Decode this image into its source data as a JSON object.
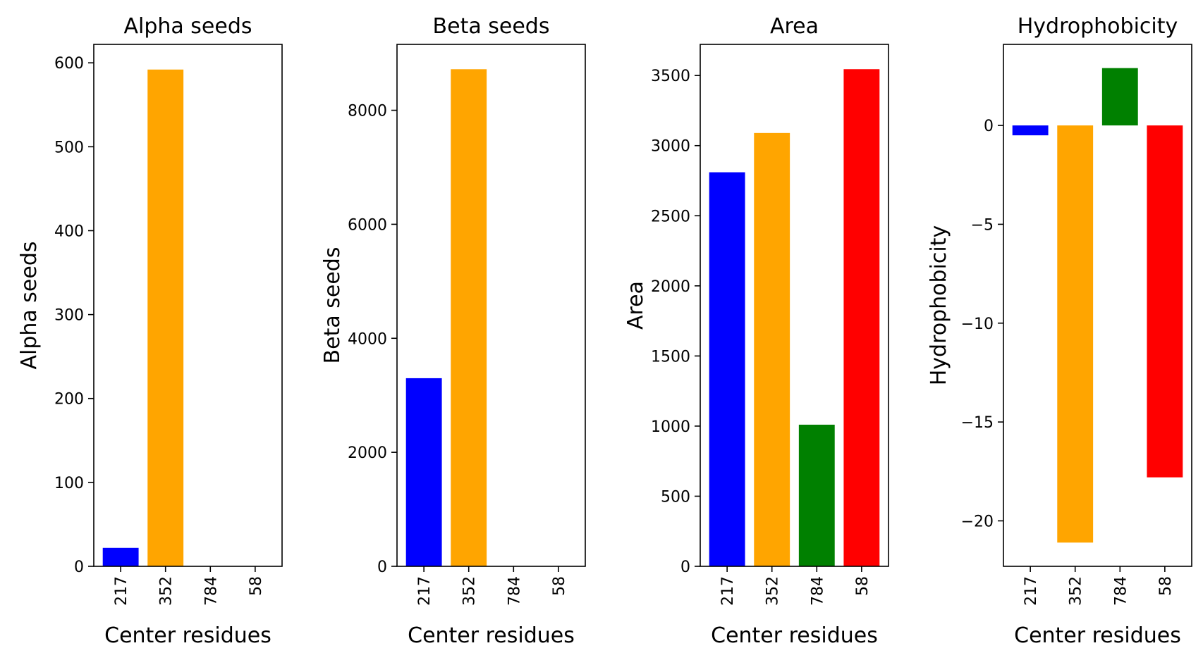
{
  "chart_data": [
    {
      "type": "bar",
      "title": "Alpha seeds",
      "xlabel": "Center residues",
      "ylabel": "Alpha seeds",
      "categories": [
        "217",
        "352",
        "784",
        "58"
      ],
      "values": [
        22,
        592,
        0,
        0
      ],
      "colors": [
        "#0000ff",
        "#ffa500",
        "#008000",
        "#ff0000"
      ],
      "ylim": [
        0,
        622
      ],
      "yticks": [
        0,
        100,
        200,
        300,
        400,
        500,
        600
      ],
      "ytick_labels": [
        "0",
        "100",
        "200",
        "300",
        "400",
        "500",
        "600"
      ]
    },
    {
      "type": "bar",
      "title": "Beta seeds",
      "xlabel": "Center residues",
      "ylabel": "Beta seeds",
      "categories": [
        "217",
        "352",
        "784",
        "58"
      ],
      "values": [
        3300,
        8720,
        0,
        0
      ],
      "colors": [
        "#0000ff",
        "#ffa500",
        "#008000",
        "#ff0000"
      ],
      "ylim": [
        0,
        9156
      ],
      "yticks": [
        0,
        2000,
        4000,
        6000,
        8000
      ],
      "ytick_labels": [
        "0",
        "2000",
        "4000",
        "6000",
        "8000"
      ]
    },
    {
      "type": "bar",
      "title": "Area",
      "xlabel": "Center residues",
      "ylabel": "Area",
      "categories": [
        "217",
        "352",
        "784",
        "58"
      ],
      "values": [
        2810,
        3090,
        1010,
        3545
      ],
      "colors": [
        "#0000ff",
        "#ffa500",
        "#008000",
        "#ff0000"
      ],
      "ylim": [
        0,
        3722
      ],
      "yticks": [
        0,
        500,
        1000,
        1500,
        2000,
        2500,
        3000,
        3500
      ],
      "ytick_labels": [
        "0",
        "500",
        "1000",
        "1500",
        "2000",
        "2500",
        "3000",
        "3500"
      ]
    },
    {
      "type": "bar",
      "title": "Hydrophobicity",
      "xlabel": "Center residues",
      "ylabel": "Hydrophobicity",
      "categories": [
        "217",
        "352",
        "784",
        "58"
      ],
      "values": [
        -0.5,
        -21.1,
        2.9,
        -17.8
      ],
      "colors": [
        "#0000ff",
        "#ffa500",
        "#008000",
        "#ff0000"
      ],
      "ylim": [
        -22.3,
        4.1
      ],
      "yticks": [
        -20,
        -15,
        -10,
        -5,
        0
      ],
      "ytick_labels": [
        "−20",
        "−15",
        "−10",
        "−5",
        "0"
      ]
    }
  ]
}
